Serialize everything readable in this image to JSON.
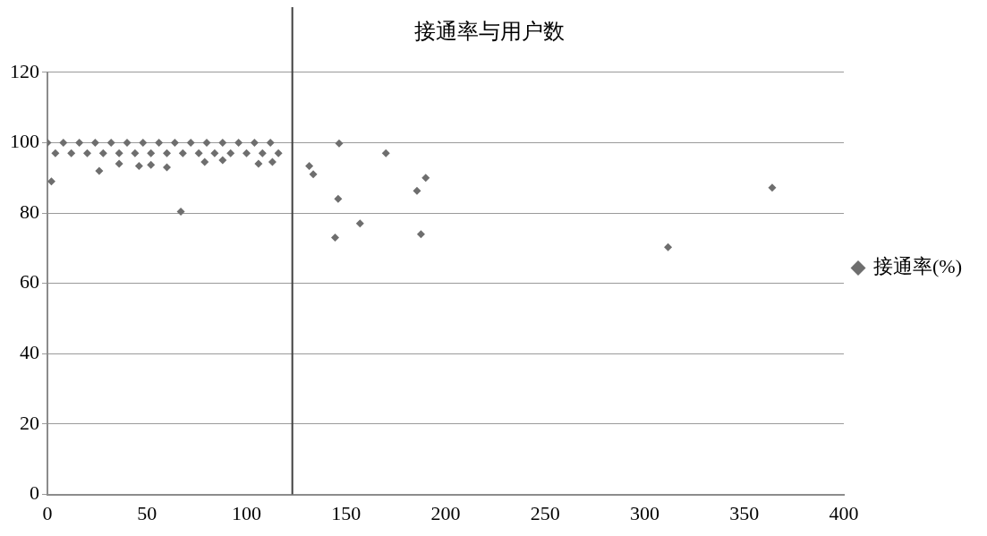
{
  "chart_data": {
    "type": "scatter",
    "title": "接通率与用户数",
    "series": [
      {
        "name": "接通率(%)",
        "color": "#6e6e6e",
        "x": [
          0,
          8,
          16,
          24,
          32,
          40,
          48,
          56,
          64,
          72,
          80,
          88,
          96,
          104,
          112,
          4,
          12,
          20,
          28,
          36,
          44,
          52,
          60,
          68,
          76,
          84,
          92,
          100,
          108,
          116,
          2,
          26,
          36,
          46,
          52,
          60,
          67,
          79,
          88,
          106,
          113,
          131.5,
          133.5,
          144.5,
          146,
          146.5,
          157,
          170,
          185.6,
          187.6,
          190,
          311.7,
          364
        ],
        "values": [
          100,
          100,
          100,
          100,
          100,
          100,
          100,
          100,
          100,
          100,
          100,
          100,
          100,
          100,
          100,
          97,
          97,
          97,
          97,
          97,
          97,
          97,
          97,
          97,
          97,
          97,
          97,
          97,
          97,
          97,
          89,
          92,
          94,
          93.4,
          93.7,
          93,
          80.4,
          94.5,
          95,
          94,
          94.5,
          93.4,
          91,
          73,
          84,
          99.8,
          77,
          97,
          86.3,
          74,
          90,
          70.3,
          87.2
        ]
      }
    ],
    "xlim": [
      0,
      400
    ],
    "xticks": [
      0,
      50,
      100,
      150,
      200,
      250,
      300,
      350,
      400
    ],
    "ylim": [
      0,
      120
    ],
    "yticks": [
      0,
      20,
      40,
      60,
      80,
      100,
      120
    ],
    "grid": "y",
    "legend": "right",
    "marker": "diamond",
    "ref_lines": [
      {
        "axis": "x",
        "value": 123,
        "color": "#404040"
      }
    ]
  }
}
